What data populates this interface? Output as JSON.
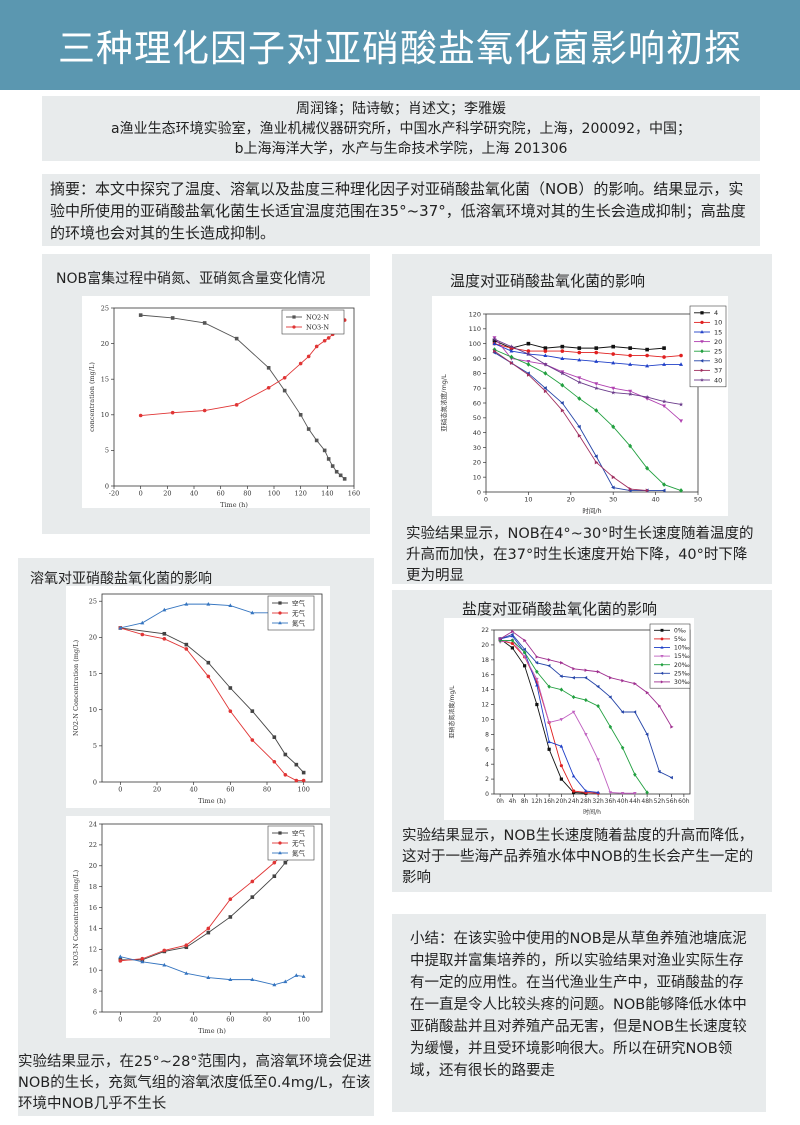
{
  "title": "三种理化因子对亚硝酸盐氧化菌影响初探",
  "authors": {
    "names": "周润锋；陆诗敏；肖述文；李雅媛",
    "affil_a": "a渔业生态环境实验室，渔业机械仪器研究所，中国水产科学研究院，上海，200092，中国；",
    "affil_b": "b上海海洋大学，水产与生命技术学院，上海 201306"
  },
  "abstract": "摘要：本文中探究了温度、溶氧以及盐度三种理化因子对亚硝酸盐氧化菌（NOB）的影响。结果显示，实验中所使用的亚硝酸盐氧化菌生长适宜温度范围在35°~37°，低溶氧环境对其的生长会造成抑制；高盐度的环境也会对其的生长造成抑制。",
  "panel1": {
    "caption": "NOB富集过程中硝氮、亚硝氮含量变化情况"
  },
  "panel2": {
    "caption": "温度对亚硝酸盐氧化菌的影响",
    "result": "实验结果显示，NOB在4°~30°时生长速度随着温度的升高而加快，在37°时生长速度开始下降，40°时下降更为明显"
  },
  "panel3": {
    "caption": "溶氧对亚硝酸盐氧化菌的影响",
    "result": "实验结果显示，在25°~28°范围内，高溶氧环境会促进NOB的生长，充氮气组的溶氧浓度低至0.4mg/L，在该环境中NOB几乎不生长"
  },
  "panel4": {
    "caption": "盐度对亚硝酸盐氧化菌的影响",
    "result": "实验结果显示，NOB生长速度随着盐度的升高而降低，这对于一些海产品养殖水体中NOB的生长会产生一定的影响"
  },
  "summary": "小结：在该实验中使用的NOB是从草鱼养殖池塘底泥中提取并富集培养的，所以实验结果对渔业实际生存有一定的应用性。在当代渔业生产中，亚硝酸盐的存在一直是令人比较头疼的问题。NOB能够降低水体中亚硝酸盐并且对养殖产品无害，但是NOB生长速度较为缓慢，并且受环境影响很大。所以在研究NOB领域，还有很长的路要走",
  "chart_data": [
    {
      "id": "enrichment",
      "type": "line",
      "xlabel": "Time (h)",
      "ylabel": "concentration (mg/L)",
      "xlim": [
        -20,
        160
      ],
      "ylim": [
        0,
        25
      ],
      "xticks": [
        -20,
        0,
        20,
        40,
        60,
        80,
        100,
        120,
        140,
        160
      ],
      "yticks": [
        0,
        5,
        10,
        15,
        20,
        25
      ],
      "legend_position": "top-right",
      "series": [
        {
          "name": "NO2-N",
          "color": "#555555",
          "marker": "square",
          "x": [
            0,
            24,
            48,
            72,
            96,
            108,
            120,
            126,
            132,
            138,
            141,
            144,
            147,
            150,
            153
          ],
          "y": [
            24,
            23.6,
            22.9,
            20.7,
            16.6,
            13.4,
            10,
            8,
            6.4,
            5,
            3.8,
            2.8,
            2,
            1.5,
            1
          ]
        },
        {
          "name": "NO3-N",
          "color": "#e03535",
          "marker": "circle",
          "x": [
            0,
            24,
            48,
            72,
            96,
            108,
            120,
            126,
            132,
            138,
            141,
            144,
            147,
            150,
            153
          ],
          "y": [
            9.9,
            10.3,
            10.6,
            11.4,
            13.8,
            15.2,
            17.2,
            18.2,
            19.6,
            20.4,
            20.8,
            21.3,
            21.8,
            22.5,
            23.3
          ]
        }
      ]
    },
    {
      "id": "temperature",
      "type": "line",
      "xlabel": "时间/h",
      "ylabel": "亚硝态氮浓度/mg/L",
      "xlim": [
        0,
        50
      ],
      "ylim": [
        0,
        120
      ],
      "xticks": [
        0,
        10,
        20,
        30,
        40,
        50
      ],
      "yticks": [
        0,
        10,
        20,
        30,
        40,
        50,
        60,
        70,
        80,
        90,
        100,
        110,
        120
      ],
      "legend_position": "top-right",
      "x": [
        2,
        6,
        10,
        14,
        18,
        22,
        26,
        30,
        34,
        38,
        42,
        46
      ],
      "series": [
        {
          "name": "4",
          "color": "#111111",
          "marker": "square",
          "values": [
            102,
            97,
            100,
            97,
            98,
            97,
            97,
            98,
            97,
            96,
            97,
            null
          ]
        },
        {
          "name": "10",
          "color": "#e02020",
          "marker": "circle",
          "values": [
            100,
            97,
            95,
            95,
            95,
            94,
            94,
            93,
            92,
            92,
            91,
            92
          ]
        },
        {
          "name": "15",
          "color": "#2040c8",
          "marker": "triangle",
          "values": [
            100,
            95,
            93,
            92,
            90,
            89,
            88,
            87,
            86,
            85,
            86,
            86
          ]
        },
        {
          "name": "20",
          "color": "#b040b0",
          "marker": "triangle-down",
          "values": [
            104,
            90,
            88,
            86,
            81,
            77,
            73,
            70,
            68,
            63,
            58,
            48
          ]
        },
        {
          "name": "25",
          "color": "#22a040",
          "marker": "diamond",
          "values": [
            96,
            91,
            86,
            80,
            72,
            63,
            55,
            44,
            31,
            16,
            5,
            1
          ]
        },
        {
          "name": "30",
          "color": "#2545a8",
          "marker": "triangle-left",
          "values": [
            94,
            87,
            80,
            70,
            60,
            44,
            24,
            3,
            1,
            1,
            1,
            null
          ]
        },
        {
          "name": "37",
          "color": "#a03060",
          "marker": "triangle-right",
          "values": [
            95,
            87,
            79,
            68,
            55,
            38,
            20,
            10,
            2,
            1,
            null,
            null
          ]
        },
        {
          "name": "40",
          "color": "#6a3a8a",
          "marker": "star",
          "values": [
            103,
            98,
            93,
            86,
            80,
            74,
            70,
            67,
            66,
            64,
            61,
            59
          ]
        }
      ]
    },
    {
      "id": "do-no2",
      "type": "line",
      "xlabel": "Time (h)",
      "ylabel": "NO2-N Concentration (mg/L)",
      "xlim": [
        -10,
        110
      ],
      "ylim": [
        0,
        26
      ],
      "xticks": [
        0,
        20,
        40,
        60,
        80,
        100
      ],
      "yticks": [
        0,
        5,
        10,
        15,
        20,
        25
      ],
      "legend_position": "top-right",
      "series": [
        {
          "name": "空气",
          "color": "#444444",
          "marker": "square",
          "x": [
            0,
            24,
            36,
            48,
            60,
            72,
            84,
            90,
            96,
            100
          ],
          "y": [
            21.3,
            20.5,
            19,
            16.5,
            13,
            9.8,
            6.2,
            3.8,
            2.4,
            1.3
          ]
        },
        {
          "name": "无气",
          "color": "#e03535",
          "marker": "circle",
          "x": [
            0,
            12,
            24,
            36,
            48,
            60,
            72,
            84,
            90,
            96,
            100
          ],
          "y": [
            21.3,
            20.4,
            19.8,
            18.4,
            14.6,
            9.8,
            5.8,
            2.8,
            1,
            0.2,
            0.2
          ]
        },
        {
          "name": "氮气",
          "color": "#3575c0",
          "marker": "triangle",
          "x": [
            0,
            12,
            24,
            36,
            48,
            60,
            72,
            84,
            90,
            96,
            100
          ],
          "y": [
            21.3,
            22,
            23.8,
            24.6,
            24.6,
            24.4,
            23.4,
            23.4,
            23.4,
            23.4,
            23.6
          ]
        }
      ]
    },
    {
      "id": "do-no3",
      "type": "line",
      "xlabel": "Time (h)",
      "ylabel": "NO3-N Concentration (mg/L)",
      "xlim": [
        -10,
        110
      ],
      "ylim": [
        6,
        24
      ],
      "xticks": [
        0,
        20,
        40,
        60,
        80,
        100
      ],
      "yticks": [
        6,
        8,
        10,
        12,
        14,
        16,
        18,
        20,
        22,
        24
      ],
      "legend_position": "top-right",
      "series": [
        {
          "name": "空气",
          "color": "#444444",
          "marker": "square",
          "x": [
            0,
            12,
            24,
            36,
            48,
            60,
            72,
            84,
            90,
            96,
            100
          ],
          "y": [
            11,
            11,
            11.8,
            12.2,
            13.6,
            15.1,
            17,
            19,
            20.3,
            21.3,
            22
          ]
        },
        {
          "name": "无气",
          "color": "#e03535",
          "marker": "circle",
          "x": [
            0,
            12,
            24,
            36,
            48,
            60,
            72,
            84,
            90,
            96,
            100
          ],
          "y": [
            10.9,
            11.1,
            11.9,
            12.4,
            14,
            16.8,
            18.5,
            20.3,
            21.3,
            21.8,
            22.2
          ]
        },
        {
          "name": "氮气",
          "color": "#3575c0",
          "marker": "triangle",
          "x": [
            0,
            12,
            24,
            36,
            48,
            60,
            72,
            84,
            90,
            96,
            100
          ],
          "y": [
            11.3,
            10.8,
            10.5,
            9.7,
            9.3,
            9.1,
            9.1,
            8.6,
            8.9,
            9.5,
            9.4
          ]
        }
      ]
    },
    {
      "id": "salinity",
      "type": "line",
      "xlabel": "时间/h",
      "ylabel": "亚硝态氮浓度/mg/L",
      "ylim": [
        0,
        22
      ],
      "yticks": [
        0,
        2,
        4,
        6,
        8,
        10,
        12,
        14,
        16,
        18,
        20,
        22
      ],
      "categories": [
        "0h",
        "4h",
        "8h",
        "12h",
        "16h",
        "20h",
        "24h",
        "28h",
        "32h",
        "36h",
        "40h",
        "44h",
        "48h",
        "52h",
        "56h",
        "60h"
      ],
      "legend_position": "top-right",
      "x": [
        0,
        4,
        8,
        12,
        16,
        20,
        24,
        28,
        32,
        36,
        40,
        44,
        48,
        52,
        56
      ],
      "series": [
        {
          "name": "0‰",
          "color": "#111111",
          "marker": "square",
          "values": [
            20.8,
            19.6,
            17.2,
            12,
            6,
            2,
            0.2,
            0.1,
            null,
            null,
            null,
            null,
            null,
            null,
            null
          ]
        },
        {
          "name": "5‰",
          "color": "#e02020",
          "marker": "circle",
          "values": [
            20.6,
            20.2,
            18.4,
            15,
            9.6,
            3.8,
            0.4,
            0.2,
            0.1,
            null,
            null,
            null,
            null,
            null,
            null
          ]
        },
        {
          "name": "10‰",
          "color": "#2040c8",
          "marker": "triangle",
          "values": [
            20.8,
            21.2,
            19,
            14.6,
            7,
            6.4,
            2.4,
            0.4,
            0.2,
            null,
            null,
            null,
            null,
            null,
            null
          ]
        },
        {
          "name": "15‰",
          "color": "#c060c0",
          "marker": "triangle-down",
          "values": [
            20.4,
            20.6,
            18.4,
            15.4,
            9.6,
            10,
            11,
            8,
            4.6,
            0.2,
            0.1,
            0.1,
            null,
            null,
            null
          ]
        },
        {
          "name": "20‰",
          "color": "#22a040",
          "marker": "diamond",
          "values": [
            20.6,
            20.6,
            19,
            16.4,
            14.4,
            14,
            13,
            12.6,
            11.8,
            9,
            6.2,
            2.6,
            0.2,
            null,
            null
          ]
        },
        {
          "name": "25‰",
          "color": "#2545a8",
          "marker": "triangle-left",
          "values": [
            20.8,
            21.4,
            19.4,
            17.6,
            17.2,
            15.8,
            15.6,
            15.6,
            14.4,
            13,
            11,
            11,
            8,
            3,
            2.2
          ]
        },
        {
          "name": "30‰",
          "color": "#a03090",
          "marker": "triangle-right",
          "values": [
            20.8,
            21.8,
            20.6,
            18.4,
            18,
            17.6,
            16.8,
            16.6,
            16.4,
            15.6,
            15.2,
            14.8,
            13.6,
            11.8,
            9
          ]
        }
      ]
    }
  ]
}
